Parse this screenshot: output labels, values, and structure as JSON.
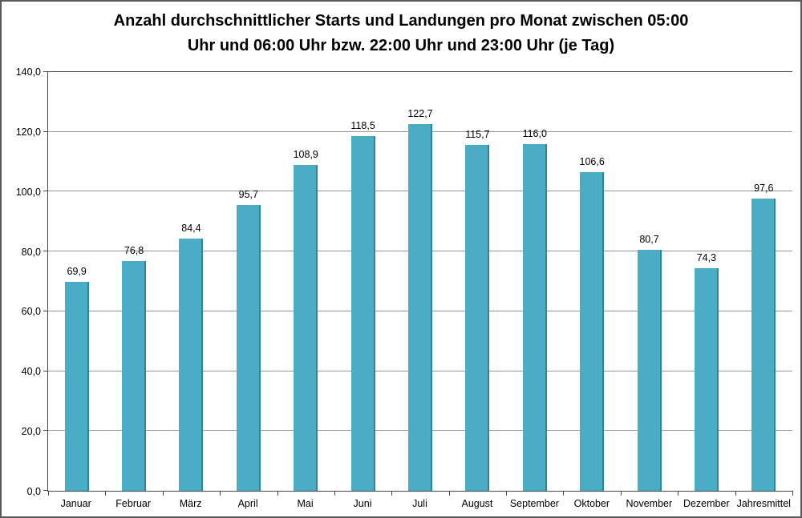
{
  "chart_data": {
    "type": "bar",
    "title": "Anzahl durchschnittlicher Starts und Landungen pro Monat zwischen 05:00 Uhr und 06:00 Uhr bzw. 22:00 Uhr und 23:00 Uhr (je Tag)",
    "title_lines": [
      "Anzahl durchschnittlicher Starts und Landungen pro Monat zwischen 05:00",
      "Uhr und 06:00 Uhr bzw. 22:00 Uhr und 23:00 Uhr (je Tag)"
    ],
    "categories": [
      "Januar",
      "Februar",
      "März",
      "April",
      "Mai",
      "Juni",
      "Juli",
      "August",
      "September",
      "Oktober",
      "November",
      "Dezember",
      "Jahresmittel"
    ],
    "values": [
      69.9,
      76.8,
      84.4,
      95.7,
      108.9,
      118.5,
      122.7,
      115.7,
      116.0,
      106.6,
      80.7,
      74.3,
      97.6
    ],
    "value_labels": [
      "69,9",
      "76,8",
      "84,4",
      "95,7",
      "108,9",
      "118,5",
      "122,7",
      "115,7",
      "116,0",
      "106,6",
      "80,7",
      "74,3",
      "97,6"
    ],
    "xlabel": "",
    "ylabel": "",
    "ylim": [
      0,
      140
    ],
    "y_tick_step": 20,
    "y_tick_labels": [
      "0,0",
      "20,0",
      "40,0",
      "60,0",
      "80,0",
      "100,0",
      "120,0",
      "140,0"
    ],
    "grid": true,
    "legend": "none",
    "colors": {
      "bar_fill": "#4BACC6",
      "bar_border": "#31849B",
      "gridline": "#969696",
      "axis_line": "#474747",
      "frame_border": "#595959",
      "text": "#000000"
    }
  }
}
